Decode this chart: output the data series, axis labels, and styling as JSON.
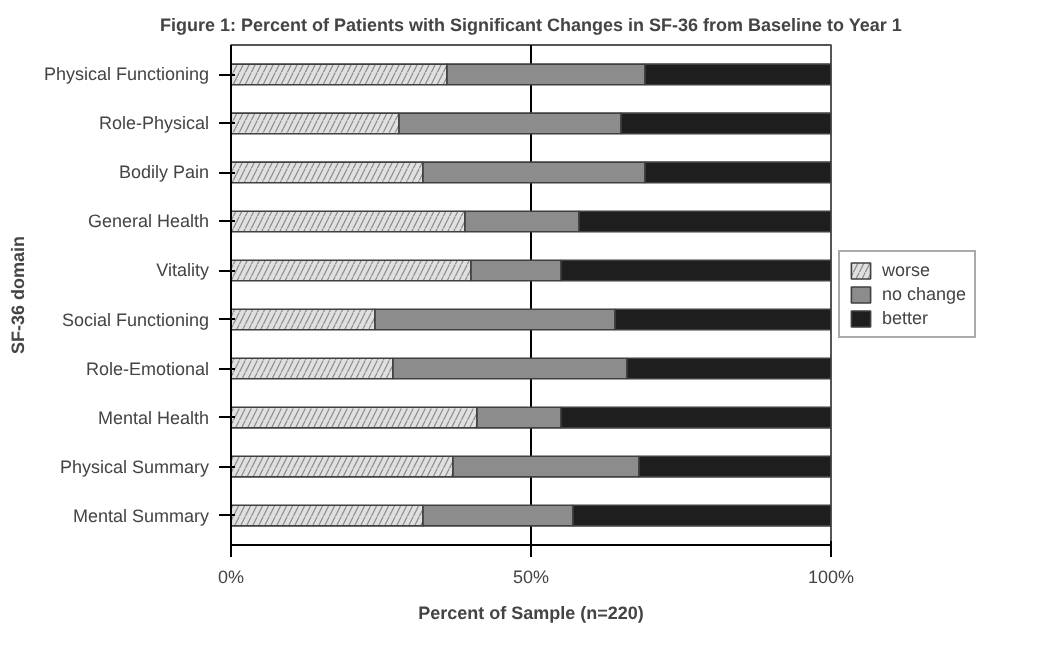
{
  "chart_data": {
    "type": "bar",
    "orientation": "horizontal",
    "stacked": true,
    "title": "Figure 1: Percent of Patients with Significant Changes in SF-36 from Baseline to Year 1",
    "xlabel": "Percent of Sample (n=220)",
    "ylabel": "SF-36 domain",
    "categories": [
      "Physical Functioning",
      "Role-Physical",
      "Bodily Pain",
      "General Health",
      "Vitality",
      "Social Functioning",
      "Role-Emotional",
      "Mental Health",
      "Physical Summary",
      "Mental Summary"
    ],
    "series": [
      {
        "name": "worse",
        "color": "#e0e0e0",
        "values": [
          36,
          28,
          32,
          39,
          40,
          24,
          27,
          41,
          37,
          32
        ]
      },
      {
        "name": "no change",
        "color": "#8c8c8c",
        "values": [
          33,
          37,
          37,
          19,
          15,
          40,
          39,
          14,
          31,
          25
        ]
      },
      {
        "name": "better",
        "color": "#1e1e1e",
        "values": [
          31,
          35,
          31,
          42,
          45,
          36,
          34,
          45,
          32,
          43
        ]
      }
    ],
    "xlim": [
      0,
      100
    ],
    "xticks": [
      {
        "value": 0,
        "label": "0%"
      },
      {
        "value": 50,
        "label": "50%"
      },
      {
        "value": 100,
        "label": "100%"
      }
    ],
    "grid": "x",
    "legend": "right"
  }
}
